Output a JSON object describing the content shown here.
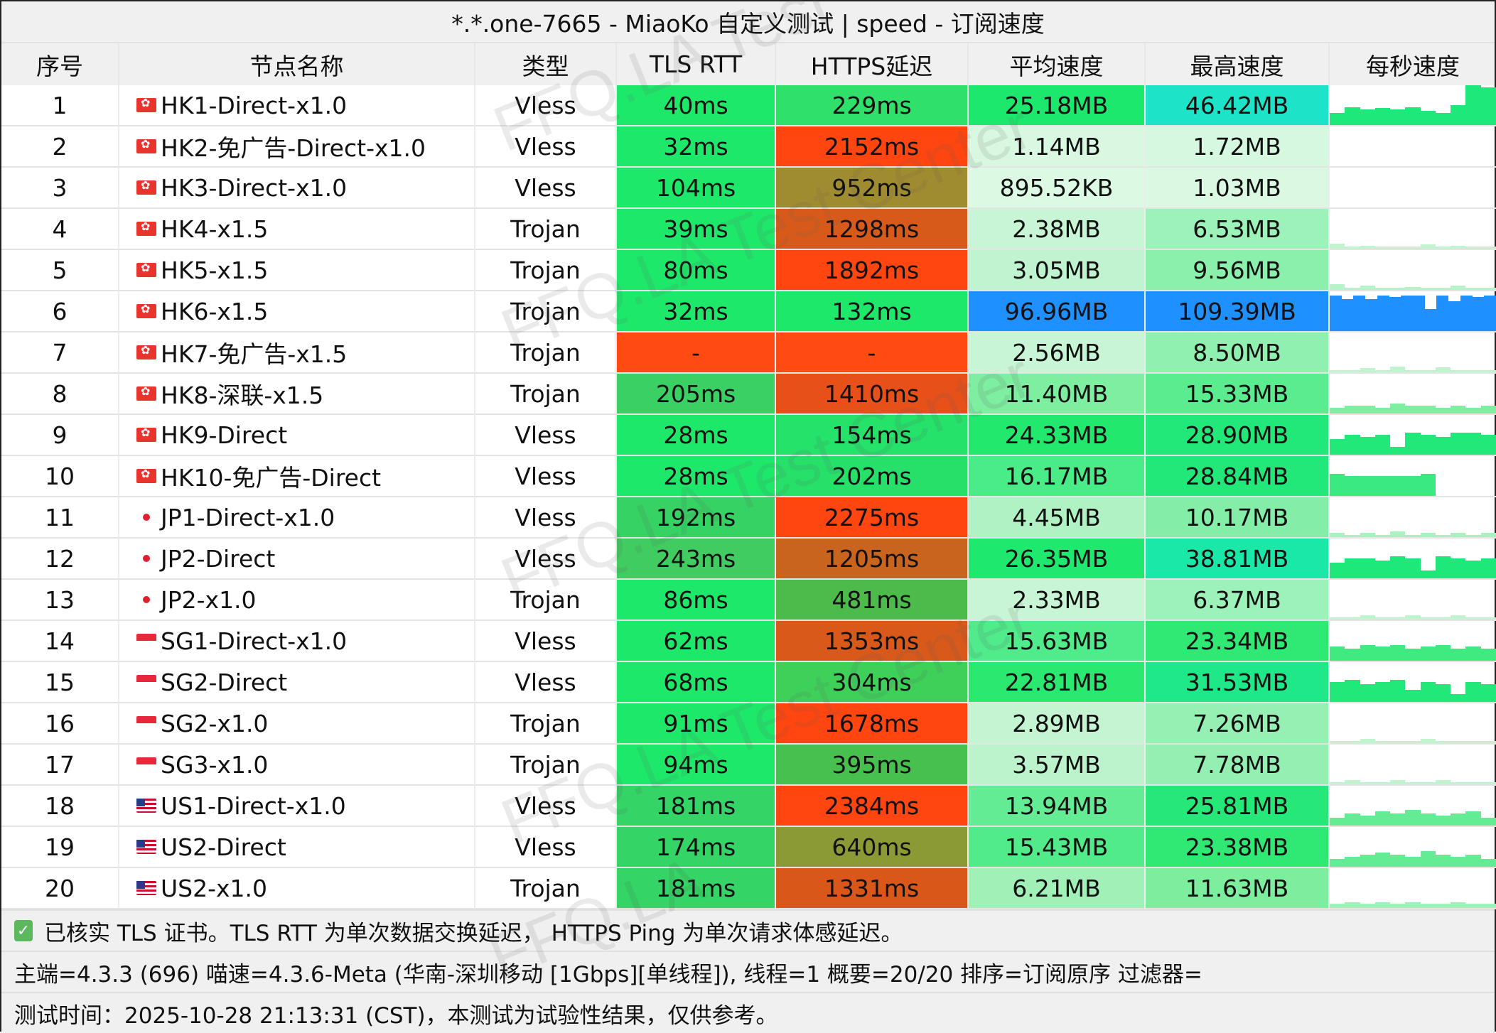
{
  "title": "*.*.one-7665 - MiaoKo 自定义测试 | speed - 订阅速度",
  "headers": [
    "序号",
    "节点名称",
    "类型",
    "TLS RTT",
    "HTTPS延迟",
    "平均速度",
    "最高速度",
    "每秒速度"
  ],
  "rows": [
    {
      "idx": "1",
      "flag": "hk",
      "name": "HK1-Direct-x1.0",
      "type": "Vless",
      "tls": "40ms",
      "tls_color": "#1ee86a",
      "https": "229ms",
      "https_color": "#2fe06a",
      "avg": "25.18MB",
      "avg_color": "#1de86e",
      "max": "46.42MB",
      "max_color": "#1de4c8",
      "spark": [
        0.3,
        0.45,
        0.4,
        0.42,
        0.4,
        0.45,
        0.35,
        0.3,
        0.5,
        1,
        0.95
      ],
      "spark_color": "#1ee87a"
    },
    {
      "idx": "2",
      "flag": "hk",
      "name": "HK2-免广告-Direct-x1.0",
      "type": "Vless",
      "tls": "32ms",
      "tls_color": "#1ee86a",
      "https": "2152ms",
      "https_color": "#ff4510",
      "avg": "1.14MB",
      "avg_color": "#d8f8e2",
      "max": "1.72MB",
      "max_color": "#d6f8e0",
      "spark": [
        0,
        0,
        0,
        0,
        0,
        0,
        0,
        0,
        0,
        0,
        0
      ],
      "spark_color": "#d8f8e2"
    },
    {
      "idx": "3",
      "flag": "hk",
      "name": "HK3-Direct-x1.0",
      "type": "Vless",
      "tls": "104ms",
      "tls_color": "#1ee86a",
      "https": "952ms",
      "https_color": "#a08c30",
      "avg": "895.52KB",
      "avg_color": "#dcf9e4",
      "max": "1.03MB",
      "max_color": "#daf8e2",
      "spark": [
        0,
        0,
        0,
        0,
        0,
        0,
        0,
        0,
        0,
        0,
        0
      ],
      "spark_color": "#d8f8e2"
    },
    {
      "idx": "4",
      "flag": "hk",
      "name": "HK4-x1.5",
      "type": "Trojan",
      "tls": "39ms",
      "tls_color": "#1ee86a",
      "https": "1298ms",
      "https_color": "#d85a1a",
      "avg": "2.38MB",
      "avg_color": "#c8f5d5",
      "max": "6.53MB",
      "max_color": "#9cf2b8",
      "spark": [
        0.12,
        0.05,
        0.08,
        0.05,
        0.06,
        0.05,
        0.1,
        0.05,
        0.08,
        0.05,
        0.05
      ],
      "spark_color": "#bff4cf"
    },
    {
      "idx": "5",
      "flag": "hk",
      "name": "HK5-x1.5",
      "type": "Trojan",
      "tls": "80ms",
      "tls_color": "#1ee86a",
      "https": "1892ms",
      "https_color": "#ff4510",
      "avg": "3.05MB",
      "avg_color": "#c0f4d0",
      "max": "9.56MB",
      "max_color": "#8af0ac",
      "spark": [
        0.15,
        0.05,
        0.1,
        0.05,
        0.06,
        0.08,
        0.05,
        0.06,
        0.1,
        0.05,
        0.05
      ],
      "spark_color": "#b6f3c8"
    },
    {
      "idx": "6",
      "flag": "hk",
      "name": "HK6-x1.5",
      "type": "Trojan",
      "tls": "32ms",
      "tls_color": "#1ee86a",
      "https": "132ms",
      "https_color": "#1ee86a",
      "avg": "96.96MB",
      "avg_color": "#1e90ff",
      "max": "109.39MB",
      "max_color": "#1e90ff",
      "spark": [
        0.9,
        0.8,
        0.9,
        0.8,
        0.9,
        0.85,
        0.9,
        0.9,
        0.55,
        0.9,
        0.75,
        0.9,
        0.85,
        0.9
      ],
      "spark_color": "#1e90ff"
    },
    {
      "idx": "7",
      "flag": "hk",
      "name": "HK7-免广告-x1.5",
      "type": "Trojan",
      "tls": "-",
      "tls_color": "#ff4a14",
      "https": "-",
      "https_color": "#ff4a14",
      "avg": "2.56MB",
      "avg_color": "#c8f5d5",
      "max": "8.50MB",
      "max_color": "#90f0b0",
      "spark": [
        0.05,
        0.05,
        0.1,
        0.05,
        0.15,
        0.05,
        0.05,
        0.12,
        0.05,
        0.05,
        0.05
      ],
      "spark_color": "#bff4cf"
    },
    {
      "idx": "8",
      "flag": "hk",
      "name": "HK8-深联-x1.5",
      "type": "Trojan",
      "tls": "205ms",
      "tls_color": "#3ad064",
      "https": "1410ms",
      "https_color": "#e8501a",
      "avg": "11.40MB",
      "avg_color": "#7eeea0",
      "max": "15.33MB",
      "max_color": "#5aec8e",
      "spark": [
        0.15,
        0.2,
        0.2,
        0.15,
        0.25,
        0.2,
        0.2,
        0.15,
        0.2,
        0.15,
        0.2
      ],
      "spark_color": "#7eeea0"
    },
    {
      "idx": "9",
      "flag": "hk",
      "name": "HK9-Direct",
      "type": "Vless",
      "tls": "28ms",
      "tls_color": "#1ee86a",
      "https": "154ms",
      "https_color": "#24e26a",
      "avg": "24.33MB",
      "avg_color": "#22e86e",
      "max": "28.90MB",
      "max_color": "#22e87a",
      "spark": [
        0.4,
        0.5,
        0.45,
        0.5,
        0.2,
        0.55,
        0.5,
        0.45,
        0.55,
        0.55,
        0.5
      ],
      "spark_color": "#22e87a"
    },
    {
      "idx": "10",
      "flag": "hk",
      "name": "HK10-免广告-Direct",
      "type": "Vless",
      "tls": "28ms",
      "tls_color": "#1ee86a",
      "https": "202ms",
      "https_color": "#26e06a",
      "avg": "16.17MB",
      "avg_color": "#4aec88",
      "max": "28.84MB",
      "max_color": "#22e87a",
      "spark": [
        0.55,
        0.5,
        0.5,
        0.5,
        0.5,
        0.5,
        0.55,
        0,
        0,
        0,
        0
      ],
      "spark_color": "#3aea80"
    },
    {
      "idx": "11",
      "flag": "jp",
      "name": "JP1-Direct-x1.0",
      "type": "Vless",
      "tls": "192ms",
      "tls_color": "#36d264",
      "https": "2275ms",
      "https_color": "#ff4510",
      "avg": "4.45MB",
      "avg_color": "#b0f2c4",
      "max": "10.17MB",
      "max_color": "#84eea8",
      "spark": [
        0.1,
        0.05,
        0.1,
        0.05,
        0.15,
        0.05,
        0.1,
        0.05,
        0.1,
        0.05,
        0.1
      ],
      "spark_color": "#a8f2c0"
    },
    {
      "idx": "12",
      "flag": "jp",
      "name": "JP2-Direct",
      "type": "Vless",
      "tls": "243ms",
      "tls_color": "#40cc60",
      "https": "1205ms",
      "https_color": "#c8641e",
      "avg": "26.35MB",
      "avg_color": "#1ee86e",
      "max": "38.81MB",
      "max_color": "#1ae8a8",
      "spark": [
        0.4,
        0.5,
        0.5,
        0.45,
        0.55,
        0.5,
        0.2,
        0.55,
        0.5,
        0.45,
        0.5
      ],
      "spark_color": "#1ee87a"
    },
    {
      "idx": "13",
      "flag": "jp",
      "name": "JP2-x1.0",
      "type": "Trojan",
      "tls": "86ms",
      "tls_color": "#1ee86a",
      "https": "481ms",
      "https_color": "#4cbb4c",
      "avg": "2.33MB",
      "avg_color": "#c8f5d5",
      "max": "6.37MB",
      "max_color": "#9cf2b8",
      "spark": [
        0.05,
        0.05,
        0.1,
        0.05,
        0.05,
        0.1,
        0.05,
        0.05,
        0.1,
        0.05,
        0.05
      ],
      "spark_color": "#bff4cf"
    },
    {
      "idx": "14",
      "flag": "sg",
      "name": "SG1-Direct-x1.0",
      "type": "Vless",
      "tls": "62ms",
      "tls_color": "#1ee86a",
      "https": "1353ms",
      "https_color": "#d9591a",
      "avg": "15.63MB",
      "avg_color": "#50eb8a",
      "max": "23.34MB",
      "max_color": "#30e874",
      "spark": [
        0.35,
        0.3,
        0.4,
        0.35,
        0.4,
        0.3,
        0.35,
        0.4,
        0.3,
        0.35,
        0.3
      ],
      "spark_color": "#40ea80"
    },
    {
      "idx": "15",
      "flag": "sg",
      "name": "SG2-Direct",
      "type": "Vless",
      "tls": "68ms",
      "tls_color": "#1ee86a",
      "https": "304ms",
      "https_color": "#3fd05a",
      "avg": "22.81MB",
      "avg_color": "#2ae870",
      "max": "31.53MB",
      "max_color": "#1ee888",
      "spark": [
        0.5,
        0.55,
        0.45,
        0.5,
        0.55,
        0.3,
        0.5,
        0.45,
        0.2,
        0.5,
        0.45
      ],
      "spark_color": "#22e87a"
    },
    {
      "idx": "16",
      "flag": "sg",
      "name": "SG2-x1.0",
      "type": "Trojan",
      "tls": "91ms",
      "tls_color": "#1ee86a",
      "https": "1678ms",
      "https_color": "#ff4510",
      "avg": "2.89MB",
      "avg_color": "#c4f4d2",
      "max": "7.26MB",
      "max_color": "#96f0b4",
      "spark": [
        0.05,
        0.05,
        0.1,
        0.05,
        0.05,
        0.05,
        0.1,
        0.05,
        0.05,
        0.05,
        0.05
      ],
      "spark_color": "#bff4cf"
    },
    {
      "idx": "17",
      "flag": "sg",
      "name": "SG3-x1.0",
      "type": "Trojan",
      "tls": "94ms",
      "tls_color": "#1ee86a",
      "https": "395ms",
      "https_color": "#48c050",
      "avg": "3.57MB",
      "avg_color": "#bcf3cc",
      "max": "7.78MB",
      "max_color": "#94f0b2",
      "spark": [
        0.05,
        0.1,
        0.05,
        0.05,
        0.1,
        0.05,
        0.05,
        0.1,
        0.05,
        0.05,
        0.05
      ],
      "spark_color": "#bff4cf"
    },
    {
      "idx": "18",
      "flag": "us",
      "name": "US1-Direct-x1.0",
      "type": "Vless",
      "tls": "181ms",
      "tls_color": "#34d466",
      "https": "2384ms",
      "https_color": "#ff4510",
      "avg": "13.94MB",
      "avg_color": "#64ec94",
      "max": "25.81MB",
      "max_color": "#26e878",
      "spark": [
        0.2,
        0.3,
        0.25,
        0.35,
        0.3,
        0.4,
        0.3,
        0.25,
        0.3,
        0.35,
        0.2
      ],
      "spark_color": "#64ec94"
    },
    {
      "idx": "19",
      "flag": "us",
      "name": "US2-Direct",
      "type": "Vless",
      "tls": "174ms",
      "tls_color": "#34d466",
      "https": "640ms",
      "https_color": "#8c9a36",
      "avg": "15.43MB",
      "avg_color": "#52eb8a",
      "max": "23.38MB",
      "max_color": "#30e874",
      "spark": [
        0.2,
        0.25,
        0.3,
        0.35,
        0.3,
        0.25,
        0.4,
        0.3,
        0.25,
        0.3,
        0.2
      ],
      "spark_color": "#64ec94"
    },
    {
      "idx": "20",
      "flag": "us",
      "name": "US2-x1.0",
      "type": "Trojan",
      "tls": "181ms",
      "tls_color": "#34d466",
      "https": "1331ms",
      "https_color": "#da571a",
      "avg": "6.21MB",
      "avg_color": "#a0f0b8",
      "max": "11.63MB",
      "max_color": "#7cee9e",
      "spark": [
        0.1,
        0.15,
        0.1,
        0.15,
        0.1,
        0.15,
        0.1,
        0.1,
        0.15,
        0.1,
        0.1
      ],
      "spark_color": "#a0f0b8"
    }
  ],
  "footer": {
    "line1": "已核实 TLS 证书。TLS RTT 为单次数据交换延迟， HTTPS Ping 为单次请求体感延迟。",
    "line2": "主端=4.3.3 (696) 喵速=4.3.6-Meta (华南-深圳移动 [1Gbps][单线程]), 线程=1 概要=20/20 排序=订阅原序 过滤器=",
    "line3": "测试时间：2025-10-28 21:13:31 (CST)，本测试为试验性结果，仅供参考。"
  },
  "watermark": "FFQ.LA Test Center"
}
